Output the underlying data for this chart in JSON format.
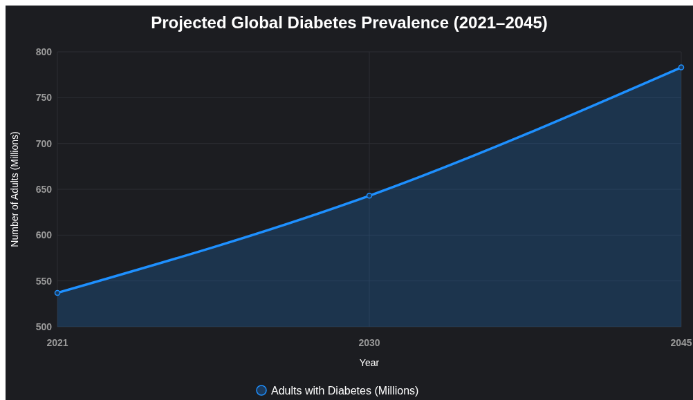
{
  "chart_data": {
    "type": "area",
    "title": "Projected Global Diabetes Prevalence (2021–2045)",
    "xlabel": "Year",
    "ylabel": "Number of Adults (Millions)",
    "categories": [
      "2021",
      "2030",
      "2045"
    ],
    "series": [
      {
        "name": "Adults with Diabetes (Millions)",
        "color": "#1e90ff",
        "values": [
          537,
          643,
          783
        ]
      }
    ],
    "ylim": [
      500,
      800
    ],
    "yticks": [
      500,
      550,
      600,
      650,
      700,
      750,
      800
    ],
    "grid": true,
    "legend": "bottom",
    "marker": "circle"
  }
}
